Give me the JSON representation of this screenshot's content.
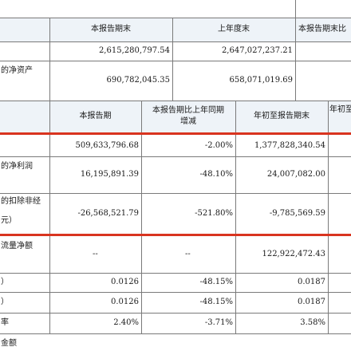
{
  "section1": {
    "headers": [
      "本报告期末",
      "上年度末",
      "本报告期末比"
    ],
    "rows": [
      {
        "label": "",
        "values": [
          "2,615,280,797.54",
          "2,647,027,237.21"
        ]
      },
      {
        "label": "的净资产",
        "values": [
          "690,782,045.35",
          "658,071,019.69"
        ]
      }
    ]
  },
  "section2": {
    "headers": [
      "本报告期",
      "本报告期比上年同期增减",
      "年初至报告期末",
      "年初至"
    ],
    "rows": [
      {
        "label": "",
        "values": [
          "509,633,796.68",
          "-2.00%",
          "1,377,828,340.54"
        ]
      },
      {
        "label": "的净利润",
        "values": [
          "16,195,891.39",
          "-48.10%",
          "24,007,082.00"
        ]
      },
      {
        "label": "的扣除非经",
        "label2": "元）",
        "values": [
          "-26,568,521.79",
          "-521.80%",
          "-9,785,569.59"
        ]
      },
      {
        "label": "流量净额",
        "values": [
          "--",
          "--",
          "122,922,472.43"
        ]
      },
      {
        "label": "）",
        "values": [
          "0.0126",
          "-48.15%",
          "0.0187"
        ]
      },
      {
        "label": "）",
        "values": [
          "0.0126",
          "-48.15%",
          "0.0187"
        ]
      },
      {
        "label": "率",
        "values": [
          "2.40%",
          "-3.71%",
          "3.58%"
        ]
      }
    ]
  },
  "footer": {
    "text": "金额"
  }
}
